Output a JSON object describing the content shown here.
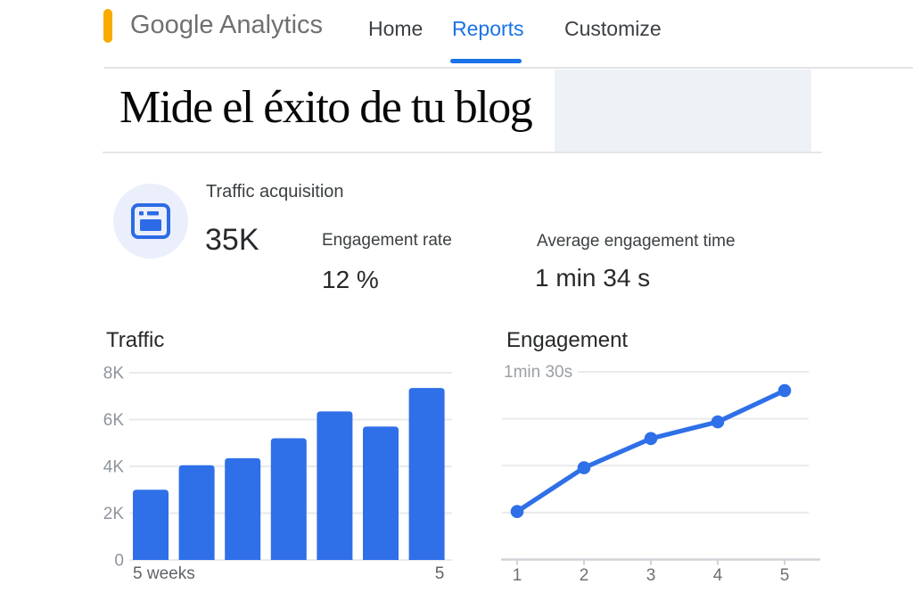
{
  "header": {
    "logo_text": "Google Analytics",
    "logo_bar_color": "#F9AB00",
    "nav": [
      {
        "label": "Home",
        "active": false
      },
      {
        "label": "Reports",
        "active": true
      },
      {
        "label": "Customize",
        "active": false
      }
    ],
    "active_tab": "Reports",
    "active_tab_color": "#1a73e8"
  },
  "page_title": "Mide el éxito de tu blog",
  "summary": {
    "icon": "browser-window-icon",
    "icon_color": "#2c6be5",
    "card_title": "Traffic acquisition",
    "metrics": [
      {
        "label": "",
        "value": "35K"
      },
      {
        "label": "Engagement rate",
        "value": "12 %"
      },
      {
        "label": "Average engagement time",
        "value": "1 min 34 s"
      }
    ]
  },
  "colors": {
    "accent_blue": "#2f6fe8",
    "grid_line": "#eaeaea",
    "axis_line": "#d0d3d7",
    "y_tick_text": "#8f949c",
    "x_tick_text": "#5f6368",
    "reference_text": "#9aa0a6"
  },
  "chart_data": [
    {
      "type": "bar",
      "title": "Traffic",
      "values": [
        3000,
        4050,
        4350,
        5200,
        6350,
        5700,
        7350
      ],
      "ylim": [
        0,
        8000
      ],
      "y_ticks": [
        {
          "value": 8000,
          "label": "8K"
        },
        {
          "value": 6000,
          "label": "6K"
        },
        {
          "value": 4000,
          "label": "4K"
        },
        {
          "value": 2000,
          "label": "2K"
        },
        {
          "value": 0,
          "label": "0"
        }
      ],
      "x_left_label": "5 weeks",
      "x_right_label": "5",
      "grid": true,
      "legend": "none"
    },
    {
      "type": "line",
      "title": "Engagement",
      "x": [
        1,
        2,
        3,
        4,
        5
      ],
      "x_tick_labels": [
        "1",
        "2",
        "3",
        "4",
        "5"
      ],
      "values_seconds": [
        23,
        44,
        58,
        66,
        81
      ],
      "reference_label": "1min 30s",
      "reference_value_seconds": 90,
      "ylim": [
        0,
        90
      ],
      "grid": true,
      "legend": "none"
    }
  ]
}
